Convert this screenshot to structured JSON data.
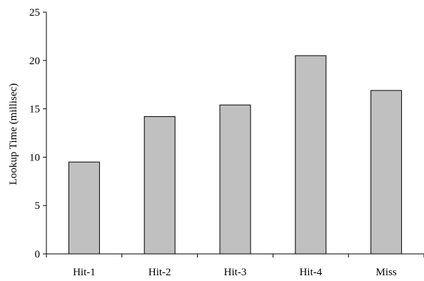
{
  "chart_data": {
    "type": "bar",
    "title": "",
    "xlabel": "",
    "ylabel": "Lookup Time (millisec)",
    "categories": [
      "Hit-1",
      "Hit-2",
      "Hit-3",
      "Hit-4",
      "Miss"
    ],
    "values": [
      9.5,
      14.2,
      15.4,
      20.5,
      16.9
    ],
    "ylim": [
      0,
      25
    ],
    "yticks": [
      0,
      5,
      10,
      15,
      20,
      25
    ],
    "grid": false,
    "legend": "none",
    "colors": {
      "bar_fill": "#c0c0c0",
      "bar_stroke": "#000000",
      "axis": "#000000"
    }
  }
}
